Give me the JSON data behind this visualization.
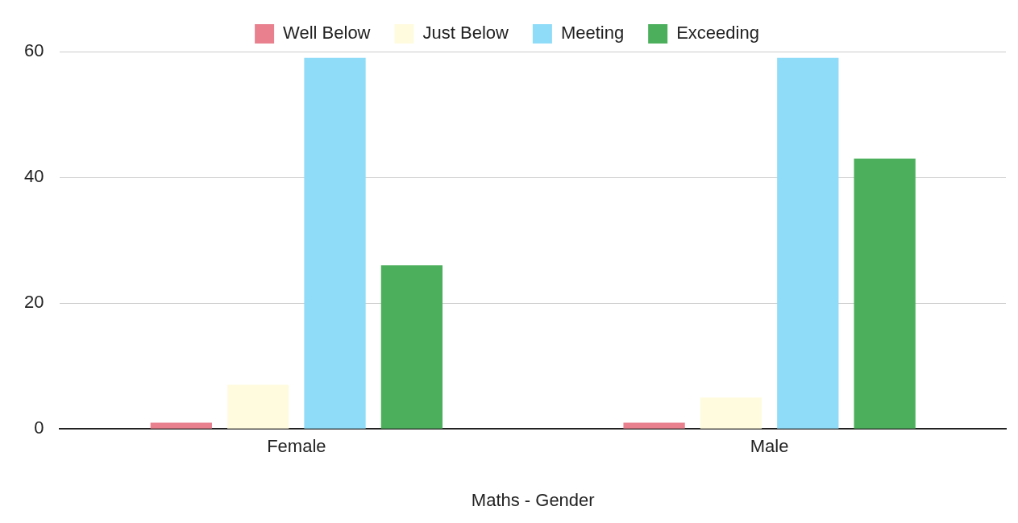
{
  "chart_data": {
    "type": "bar",
    "xlabel": "Maths - Gender",
    "categories": [
      "Female",
      "Male"
    ],
    "series": [
      {
        "name": "Well Below",
        "color": "#e8808e",
        "values": [
          1,
          1
        ]
      },
      {
        "name": "Just Below",
        "color": "#fffbdf",
        "values": [
          7,
          5
        ]
      },
      {
        "name": "Meeting",
        "color": "#8fdcf8",
        "values": [
          59,
          59
        ]
      },
      {
        "name": "Exceeding",
        "color": "#4caf5c",
        "values": [
          26,
          43
        ]
      }
    ],
    "ylim": [
      0,
      60
    ],
    "yticks": [
      0,
      20,
      40,
      60
    ],
    "grid": "y",
    "legend": "top"
  }
}
